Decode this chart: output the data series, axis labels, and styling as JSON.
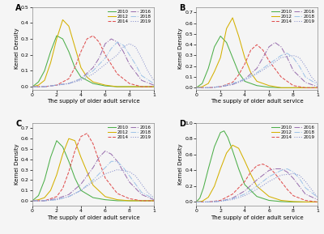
{
  "years": [
    "2010",
    "2012",
    "2014",
    "2016",
    "2018",
    "2019"
  ],
  "xlabel": "The supply of older adult service",
  "ylabel": "Kernel Density",
  "panel_labels": [
    "A",
    "B",
    "C",
    "D"
  ],
  "year_color_map": {
    "2010": "#4daf4a",
    "2012": "#d4b000",
    "2014": "#e05050",
    "2016": "#9b72b0",
    "2018": "#a0c4e8",
    "2019": "#8890cc"
  },
  "year_style_map": {
    "2010": "-",
    "2012": "-",
    "2014": "--",
    "2016": "-.",
    "2018": "-.",
    "2019": ":"
  },
  "panels": {
    "A": {
      "curves": {
        "2010": {
          "x": [
            0,
            0.5,
            1,
            1.5,
            2,
            2.5,
            3,
            3.5,
            4,
            5,
            6,
            7,
            8,
            9,
            10
          ],
          "y": [
            0,
            0.03,
            0.1,
            0.22,
            0.32,
            0.3,
            0.22,
            0.12,
            0.06,
            0.02,
            0.005,
            0,
            0,
            0,
            0
          ]
        },
        "2012": {
          "x": [
            0,
            0.5,
            1,
            1.5,
            2,
            2.5,
            3,
            3.5,
            4,
            4.5,
            5,
            6,
            7,
            8,
            9,
            10
          ],
          "y": [
            0,
            0.01,
            0.04,
            0.15,
            0.3,
            0.42,
            0.38,
            0.25,
            0.12,
            0.06,
            0.03,
            0.01,
            0,
            0,
            0,
            0
          ]
        },
        "2014": {
          "x": [
            0,
            1,
            2,
            3,
            3.5,
            4,
            4.5,
            5,
            5.5,
            6,
            7,
            8,
            9,
            10
          ],
          "y": [
            0,
            0,
            0.01,
            0.05,
            0.12,
            0.22,
            0.3,
            0.32,
            0.28,
            0.2,
            0.08,
            0.02,
            0,
            0
          ]
        },
        "2016": {
          "x": [
            0,
            1,
            2,
            3,
            4,
            5,
            5.5,
            6,
            6.5,
            7,
            7.5,
            8,
            9,
            10
          ],
          "y": [
            0,
            0,
            0.01,
            0.02,
            0.05,
            0.12,
            0.18,
            0.27,
            0.3,
            0.28,
            0.22,
            0.14,
            0.04,
            0.01
          ]
        },
        "2018": {
          "x": [
            0,
            1,
            2,
            3,
            4,
            5,
            6,
            6.5,
            7,
            7.5,
            8,
            8.5,
            9,
            10
          ],
          "y": [
            0,
            0,
            0.01,
            0.02,
            0.05,
            0.1,
            0.18,
            0.24,
            0.28,
            0.26,
            0.2,
            0.14,
            0.07,
            0.02
          ]
        },
        "2019": {
          "x": [
            0,
            1,
            2,
            3,
            4,
            5,
            6,
            7,
            7.5,
            8,
            8.5,
            9,
            9.5,
            10
          ],
          "y": [
            0,
            0,
            0.01,
            0.02,
            0.04,
            0.08,
            0.14,
            0.2,
            0.25,
            0.27,
            0.25,
            0.18,
            0.1,
            0.04
          ]
        }
      },
      "xlim": [
        0,
        10
      ],
      "ylim": [
        -0.02,
        0.5
      ],
      "yticks": [
        0,
        0.1,
        0.2,
        0.3,
        0.4,
        0.5
      ]
    },
    "B": {
      "curves": {
        "2010": {
          "x": [
            0,
            0.5,
            1,
            1.5,
            2,
            2.5,
            3,
            3.5,
            4,
            5,
            6,
            7,
            8,
            9,
            10
          ],
          "y": [
            0,
            0.04,
            0.18,
            0.38,
            0.48,
            0.42,
            0.28,
            0.14,
            0.06,
            0.02,
            0.005,
            0,
            0,
            0,
            0
          ]
        },
        "2012": {
          "x": [
            0,
            0.5,
            1,
            1.5,
            2,
            2.5,
            3,
            3.5,
            4,
            4.5,
            5,
            6,
            7,
            8,
            9,
            10
          ],
          "y": [
            0,
            0.01,
            0.04,
            0.15,
            0.28,
            0.55,
            0.65,
            0.48,
            0.28,
            0.14,
            0.06,
            0.02,
            0,
            0,
            0,
            0
          ]
        },
        "2014": {
          "x": [
            0,
            1,
            2,
            3,
            3.5,
            4,
            4.5,
            5,
            5.5,
            6,
            7,
            8,
            9,
            10
          ],
          "y": [
            0,
            0,
            0.01,
            0.05,
            0.12,
            0.22,
            0.35,
            0.4,
            0.35,
            0.25,
            0.1,
            0.02,
            0,
            0
          ]
        },
        "2016": {
          "x": [
            0,
            1,
            2,
            3,
            4,
            5,
            5.5,
            6,
            6.5,
            7,
            7.5,
            8,
            9,
            10
          ],
          "y": [
            0,
            0,
            0.01,
            0.03,
            0.08,
            0.18,
            0.28,
            0.38,
            0.42,
            0.38,
            0.28,
            0.16,
            0.05,
            0.01
          ]
        },
        "2018": {
          "x": [
            0,
            1,
            2,
            3,
            4,
            5,
            6,
            7,
            7.5,
            8,
            8.5,
            9,
            10
          ],
          "y": [
            0,
            0,
            0.01,
            0.04,
            0.08,
            0.14,
            0.22,
            0.3,
            0.32,
            0.28,
            0.2,
            0.1,
            0.03
          ]
        },
        "2019": {
          "x": [
            0,
            1,
            2,
            3,
            4,
            5,
            6,
            7,
            8,
            8.5,
            9,
            9.5,
            10
          ],
          "y": [
            0,
            0,
            0.01,
            0.03,
            0.07,
            0.13,
            0.2,
            0.28,
            0.3,
            0.28,
            0.2,
            0.1,
            0.04
          ]
        }
      },
      "xlim": [
        0,
        10
      ],
      "ylim": [
        -0.02,
        0.75
      ],
      "yticks": [
        0,
        0.2,
        0.4,
        0.6
      ]
    },
    "C": {
      "curves": {
        "2010": {
          "x": [
            0,
            0.5,
            1,
            1.5,
            2,
            2.5,
            3,
            3.5,
            4,
            5,
            6,
            7,
            8,
            9,
            10
          ],
          "y": [
            0,
            0.05,
            0.2,
            0.42,
            0.58,
            0.52,
            0.38,
            0.22,
            0.1,
            0.03,
            0.01,
            0,
            0,
            0,
            0
          ]
        },
        "2012": {
          "x": [
            0,
            0.5,
            1,
            1.5,
            2,
            2.5,
            3,
            3.5,
            4,
            4.5,
            5,
            6,
            7,
            8,
            9,
            10
          ],
          "y": [
            0,
            0.01,
            0.03,
            0.1,
            0.25,
            0.45,
            0.6,
            0.58,
            0.42,
            0.28,
            0.15,
            0.04,
            0.01,
            0,
            0,
            0
          ]
        },
        "2014": {
          "x": [
            0,
            1,
            2,
            2.5,
            3,
            3.5,
            4,
            4.5,
            5,
            5.5,
            6,
            7,
            8,
            9,
            10
          ],
          "y": [
            0,
            0,
            0.04,
            0.12,
            0.28,
            0.48,
            0.62,
            0.65,
            0.55,
            0.38,
            0.22,
            0.07,
            0.02,
            0,
            0
          ]
        },
        "2016": {
          "x": [
            0,
            1,
            2,
            3,
            4,
            5,
            5.5,
            6,
            6.5,
            7,
            7.5,
            8,
            9,
            10
          ],
          "y": [
            0,
            0,
            0.02,
            0.06,
            0.16,
            0.32,
            0.42,
            0.48,
            0.45,
            0.38,
            0.28,
            0.18,
            0.06,
            0.01
          ]
        },
        "2018": {
          "x": [
            0,
            1,
            2,
            3,
            4,
            5,
            6,
            6.5,
            7,
            7.5,
            8,
            8.5,
            9,
            10
          ],
          "y": [
            0,
            0,
            0.01,
            0.04,
            0.1,
            0.2,
            0.32,
            0.38,
            0.38,
            0.32,
            0.24,
            0.16,
            0.08,
            0.02
          ]
        },
        "2019": {
          "x": [
            0,
            1,
            2,
            3,
            4,
            5,
            6,
            7,
            8,
            8.5,
            9,
            9.5,
            10
          ],
          "y": [
            0,
            0,
            0.01,
            0.04,
            0.1,
            0.18,
            0.26,
            0.3,
            0.28,
            0.24,
            0.16,
            0.08,
            0.03
          ]
        }
      },
      "xlim": [
        0,
        10
      ],
      "ylim": [
        -0.05,
        0.75
      ],
      "yticks": [
        0,
        0.2,
        0.4,
        0.6
      ]
    },
    "D": {
      "curves": {
        "2010": {
          "x": [
            0,
            0.3,
            0.6,
            1,
            1.5,
            2,
            2.3,
            2.6,
            3,
            3.5,
            4,
            5,
            6,
            7,
            8,
            9,
            10
          ],
          "y": [
            0,
            0.05,
            0.18,
            0.42,
            0.7,
            0.88,
            0.9,
            0.82,
            0.65,
            0.42,
            0.22,
            0.07,
            0.02,
            0.005,
            0,
            0,
            0
          ]
        },
        "2012": {
          "x": [
            0,
            0.5,
            1,
            1.5,
            2,
            2.5,
            3,
            3.5,
            4,
            4.5,
            5,
            6,
            7,
            8,
            9,
            10
          ],
          "y": [
            0,
            0.01,
            0.06,
            0.2,
            0.42,
            0.62,
            0.72,
            0.68,
            0.52,
            0.35,
            0.2,
            0.07,
            0.02,
            0.005,
            0,
            0
          ]
        },
        "2014": {
          "x": [
            0,
            1,
            2,
            3,
            4,
            4.5,
            5,
            5.5,
            6,
            6.5,
            7,
            7.5,
            8,
            9,
            10
          ],
          "y": [
            0,
            0,
            0.02,
            0.1,
            0.26,
            0.38,
            0.46,
            0.48,
            0.44,
            0.36,
            0.26,
            0.16,
            0.08,
            0.02,
            0
          ]
        },
        "2016": {
          "x": [
            0,
            1,
            2,
            3,
            4,
            5,
            6,
            6.5,
            7,
            7.5,
            8,
            8.5,
            9,
            10
          ],
          "y": [
            0,
            0,
            0.01,
            0.05,
            0.14,
            0.28,
            0.4,
            0.42,
            0.42,
            0.38,
            0.3,
            0.2,
            0.1,
            0.03
          ]
        },
        "2018": {
          "x": [
            0,
            1,
            2,
            3,
            4,
            5,
            6,
            7,
            7.5,
            8,
            8.5,
            9,
            10
          ],
          "y": [
            0,
            0,
            0.01,
            0.04,
            0.1,
            0.2,
            0.32,
            0.4,
            0.42,
            0.38,
            0.3,
            0.18,
            0.06
          ]
        },
        "2019": {
          "x": [
            0,
            1,
            2,
            3,
            4,
            5,
            6,
            7,
            8,
            8.5,
            9,
            9.5,
            10
          ],
          "y": [
            0,
            0,
            0.01,
            0.03,
            0.08,
            0.16,
            0.26,
            0.34,
            0.36,
            0.34,
            0.26,
            0.16,
            0.06
          ]
        }
      },
      "xlim": [
        0,
        10
      ],
      "ylim": [
        -0.05,
        1.0
      ],
      "yticks": [
        0,
        0.2,
        0.4,
        0.6,
        0.8,
        1.0
      ]
    }
  },
  "fontsize_label": 5,
  "fontsize_tick": 4.5,
  "fontsize_legend": 4,
  "fontsize_panel": 7,
  "bg_color": "#f5f5f5"
}
